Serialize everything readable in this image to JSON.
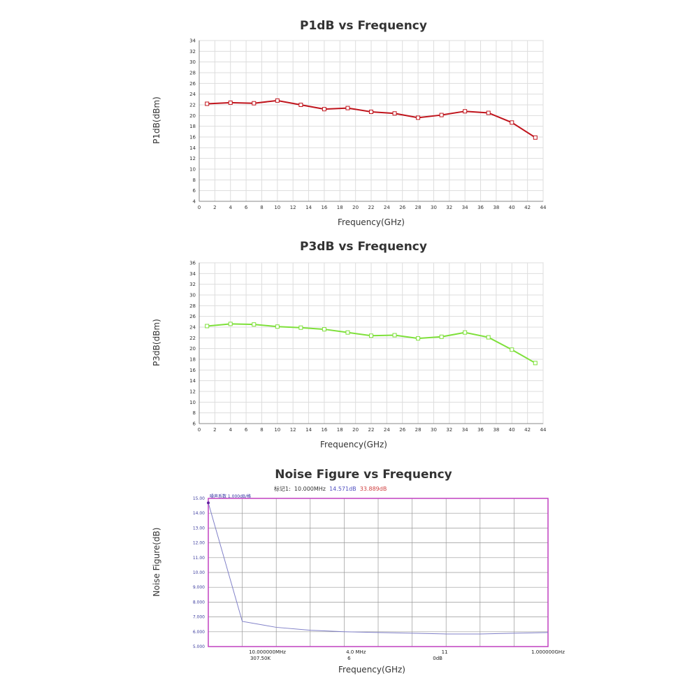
{
  "chart_data": [
    {
      "type": "line",
      "title": "P1dB vs Frequency",
      "xlabel": "Frequency(GHz)",
      "ylabel": "P1dB(dBm)",
      "xlim": [
        0,
        44
      ],
      "ylim": [
        4,
        34
      ],
      "xticks": [
        0,
        2,
        4,
        6,
        8,
        10,
        12,
        14,
        16,
        18,
        20,
        22,
        24,
        26,
        28,
        30,
        32,
        34,
        36,
        38,
        40,
        42,
        44
      ],
      "yticks": [
        4,
        6,
        8,
        10,
        12,
        14,
        16,
        18,
        20,
        22,
        24,
        26,
        28,
        30,
        32,
        34
      ],
      "grid": true,
      "color": "#c0141c",
      "x": [
        1,
        4,
        7,
        10,
        13,
        16,
        19,
        22,
        25,
        28,
        31,
        34,
        37,
        40,
        43
      ],
      "y": [
        22.2,
        22.4,
        22.3,
        22.8,
        22.0,
        21.2,
        21.4,
        20.7,
        20.4,
        19.6,
        20.1,
        20.8,
        20.5,
        18.7,
        15.9
      ]
    },
    {
      "type": "line",
      "title": "P3dB vs Frequency",
      "xlabel": "Frequency(GHz)",
      "ylabel": "P3dB(dBm)",
      "xlim": [
        0,
        44
      ],
      "ylim": [
        6,
        36
      ],
      "xticks": [
        0,
        2,
        4,
        6,
        8,
        10,
        12,
        14,
        16,
        18,
        20,
        22,
        24,
        26,
        28,
        30,
        32,
        34,
        36,
        38,
        40,
        42,
        44
      ],
      "yticks": [
        6,
        8,
        10,
        12,
        14,
        16,
        18,
        20,
        22,
        24,
        26,
        28,
        30,
        32,
        34,
        36
      ],
      "grid": true,
      "color": "#7ee03a",
      "x": [
        1,
        4,
        7,
        10,
        13,
        16,
        19,
        22,
        25,
        28,
        31,
        34,
        37,
        40,
        43
      ],
      "y": [
        24.2,
        24.6,
        24.5,
        24.1,
        23.9,
        23.6,
        23.0,
        22.4,
        22.5,
        21.9,
        22.2,
        23.0,
        22.1,
        19.8,
        17.3
      ]
    },
    {
      "type": "line",
      "title": "Noise Figure vs Frequency",
      "xlabel": "Frequency(GHz)",
      "ylabel": "Noise Figure(dB)",
      "ylim": [
        5,
        15
      ],
      "yticks": [
        "5.000",
        "6.000",
        "7.000",
        "8.000",
        "9.000",
        "10.00",
        "11.00",
        "12.00",
        "13.00",
        "14.00",
        "15.00"
      ],
      "grid": true,
      "color": "#8080c8",
      "frame_color": "#c040c0",
      "scale_label": "噪声系数  1.000dB/格",
      "marker": {
        "label": "标记1:",
        "freq": "10.000MHz",
        "nf": "14.571dB",
        "gain": "33.889dB"
      },
      "bottom_labels": [
        [
          "10.000000MHz",
          "307.50K"
        ],
        [
          "4.0  MHz",
          "6"
        ],
        [
          "11",
          "0dB"
        ],
        [
          "1.000000GHz",
          ""
        ]
      ],
      "x_divisions": 10,
      "x": [
        0,
        1,
        2,
        3,
        4,
        5,
        6,
        7,
        8,
        9,
        10
      ],
      "y": [
        14.7,
        6.7,
        6.3,
        6.1,
        6.0,
        5.95,
        5.9,
        5.85,
        5.85,
        5.9,
        5.95
      ]
    }
  ]
}
